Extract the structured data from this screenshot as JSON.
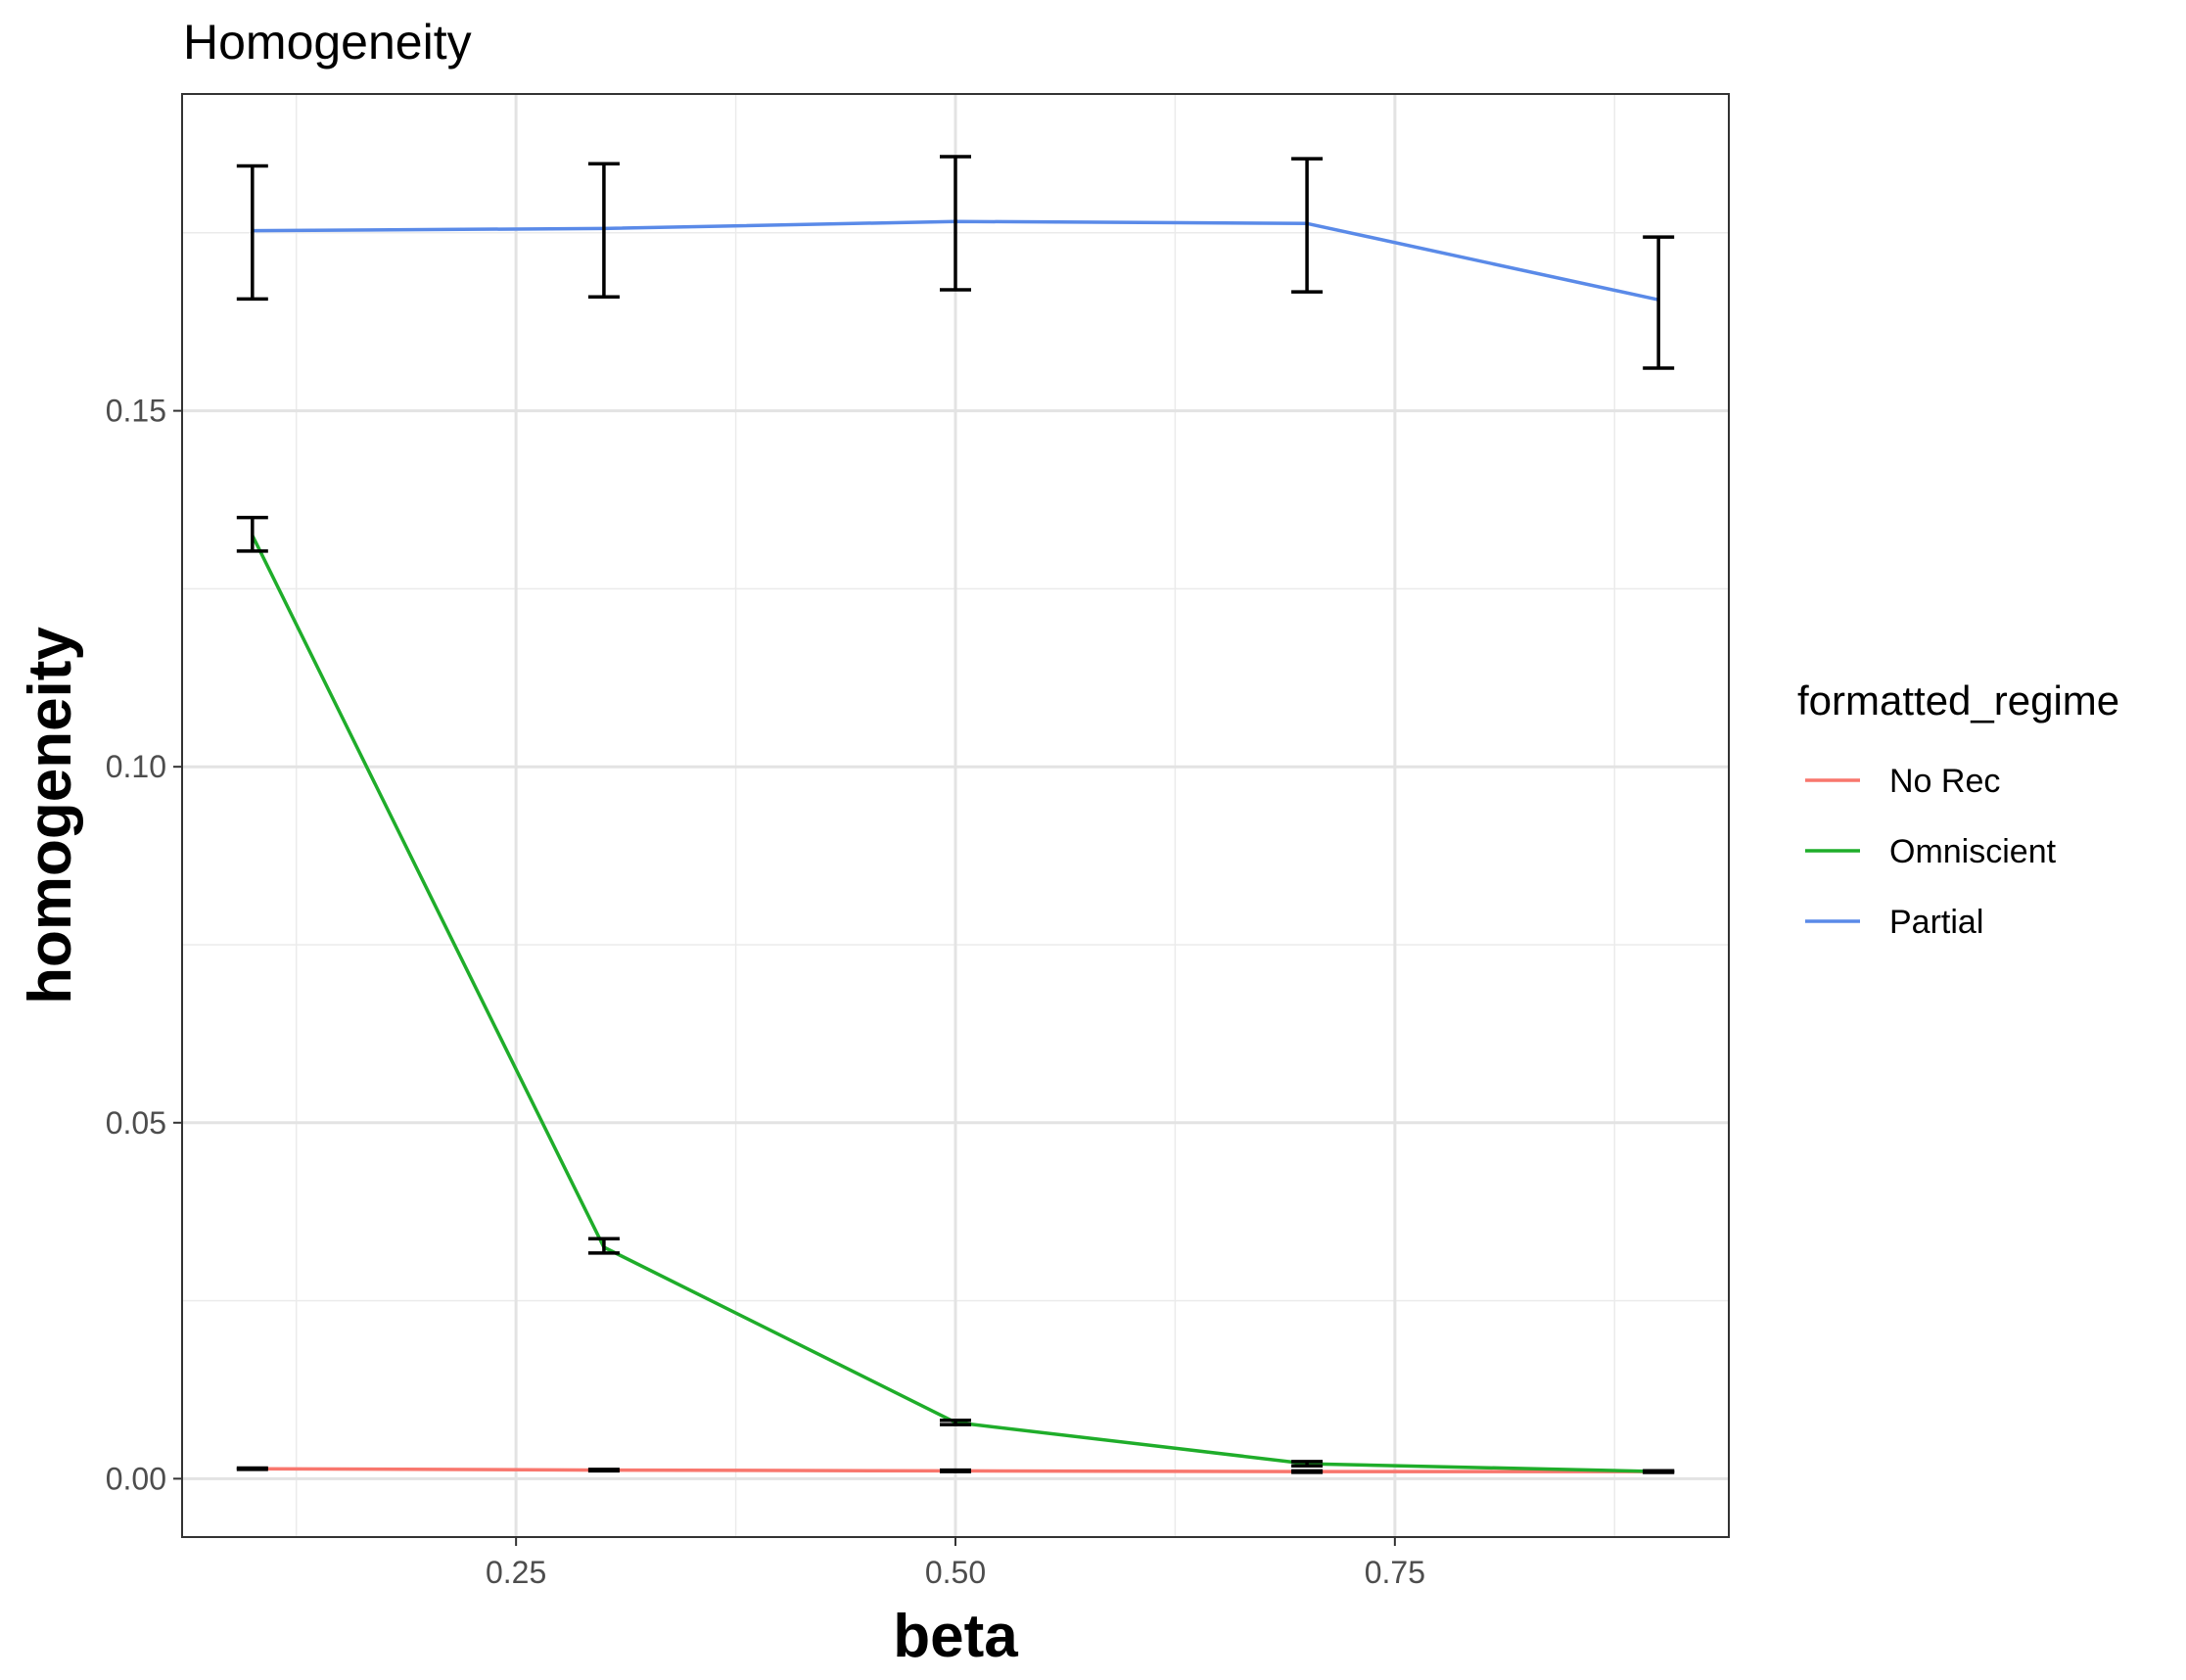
{
  "chart_data": {
    "type": "line",
    "title": "Homogeneity",
    "xlabel": "beta",
    "ylabel": "homogeneity",
    "xlim": [
      0.06,
      0.94
    ],
    "ylim": [
      -0.0082,
      0.1945
    ],
    "x_major_ticks": [
      0.25,
      0.5,
      0.75
    ],
    "x_tick_labels": [
      "0.25",
      "0.50",
      "0.75"
    ],
    "x_minor_ticks": [
      0.125,
      0.375,
      0.625,
      0.875
    ],
    "y_major_ticks": [
      0.0,
      0.05,
      0.1,
      0.15
    ],
    "y_tick_labels": [
      "0.00",
      "0.05",
      "0.10",
      "0.15"
    ],
    "y_minor_ticks": [
      0.025,
      0.075,
      0.125,
      0.175
    ],
    "grid": true,
    "legend": {
      "title": "formatted_regime",
      "position": "right"
    },
    "x": [
      0.1,
      0.3,
      0.5,
      0.7,
      0.9
    ],
    "series": [
      {
        "name": "No Rec",
        "color": "#f8766d",
        "values": [
          0.0014,
          0.0012,
          0.0011,
          0.001,
          0.001
        ],
        "err_low": [
          0.0013,
          0.0011,
          0.001,
          0.0009,
          0.0009
        ],
        "err_high": [
          0.0015,
          0.0013,
          0.0012,
          0.0011,
          0.0011
        ]
      },
      {
        "name": "Omniscient",
        "color": "#1fad2a",
        "values": [
          0.1325,
          0.0325,
          0.0079,
          0.0021,
          0.001
        ],
        "err_low": [
          0.1303,
          0.0317,
          0.0076,
          0.0018,
          0.0009
        ],
        "err_high": [
          0.135,
          0.0337,
          0.0082,
          0.0024,
          0.0011
        ]
      },
      {
        "name": "Partial",
        "color": "#5a8ae8",
        "values": [
          0.1753,
          0.1756,
          0.1766,
          0.1763,
          0.1656
        ],
        "err_low": [
          0.1657,
          0.166,
          0.167,
          0.1667,
          0.156
        ],
        "err_high": [
          0.1844,
          0.1847,
          0.1857,
          0.1854,
          0.1744
        ]
      }
    ]
  }
}
